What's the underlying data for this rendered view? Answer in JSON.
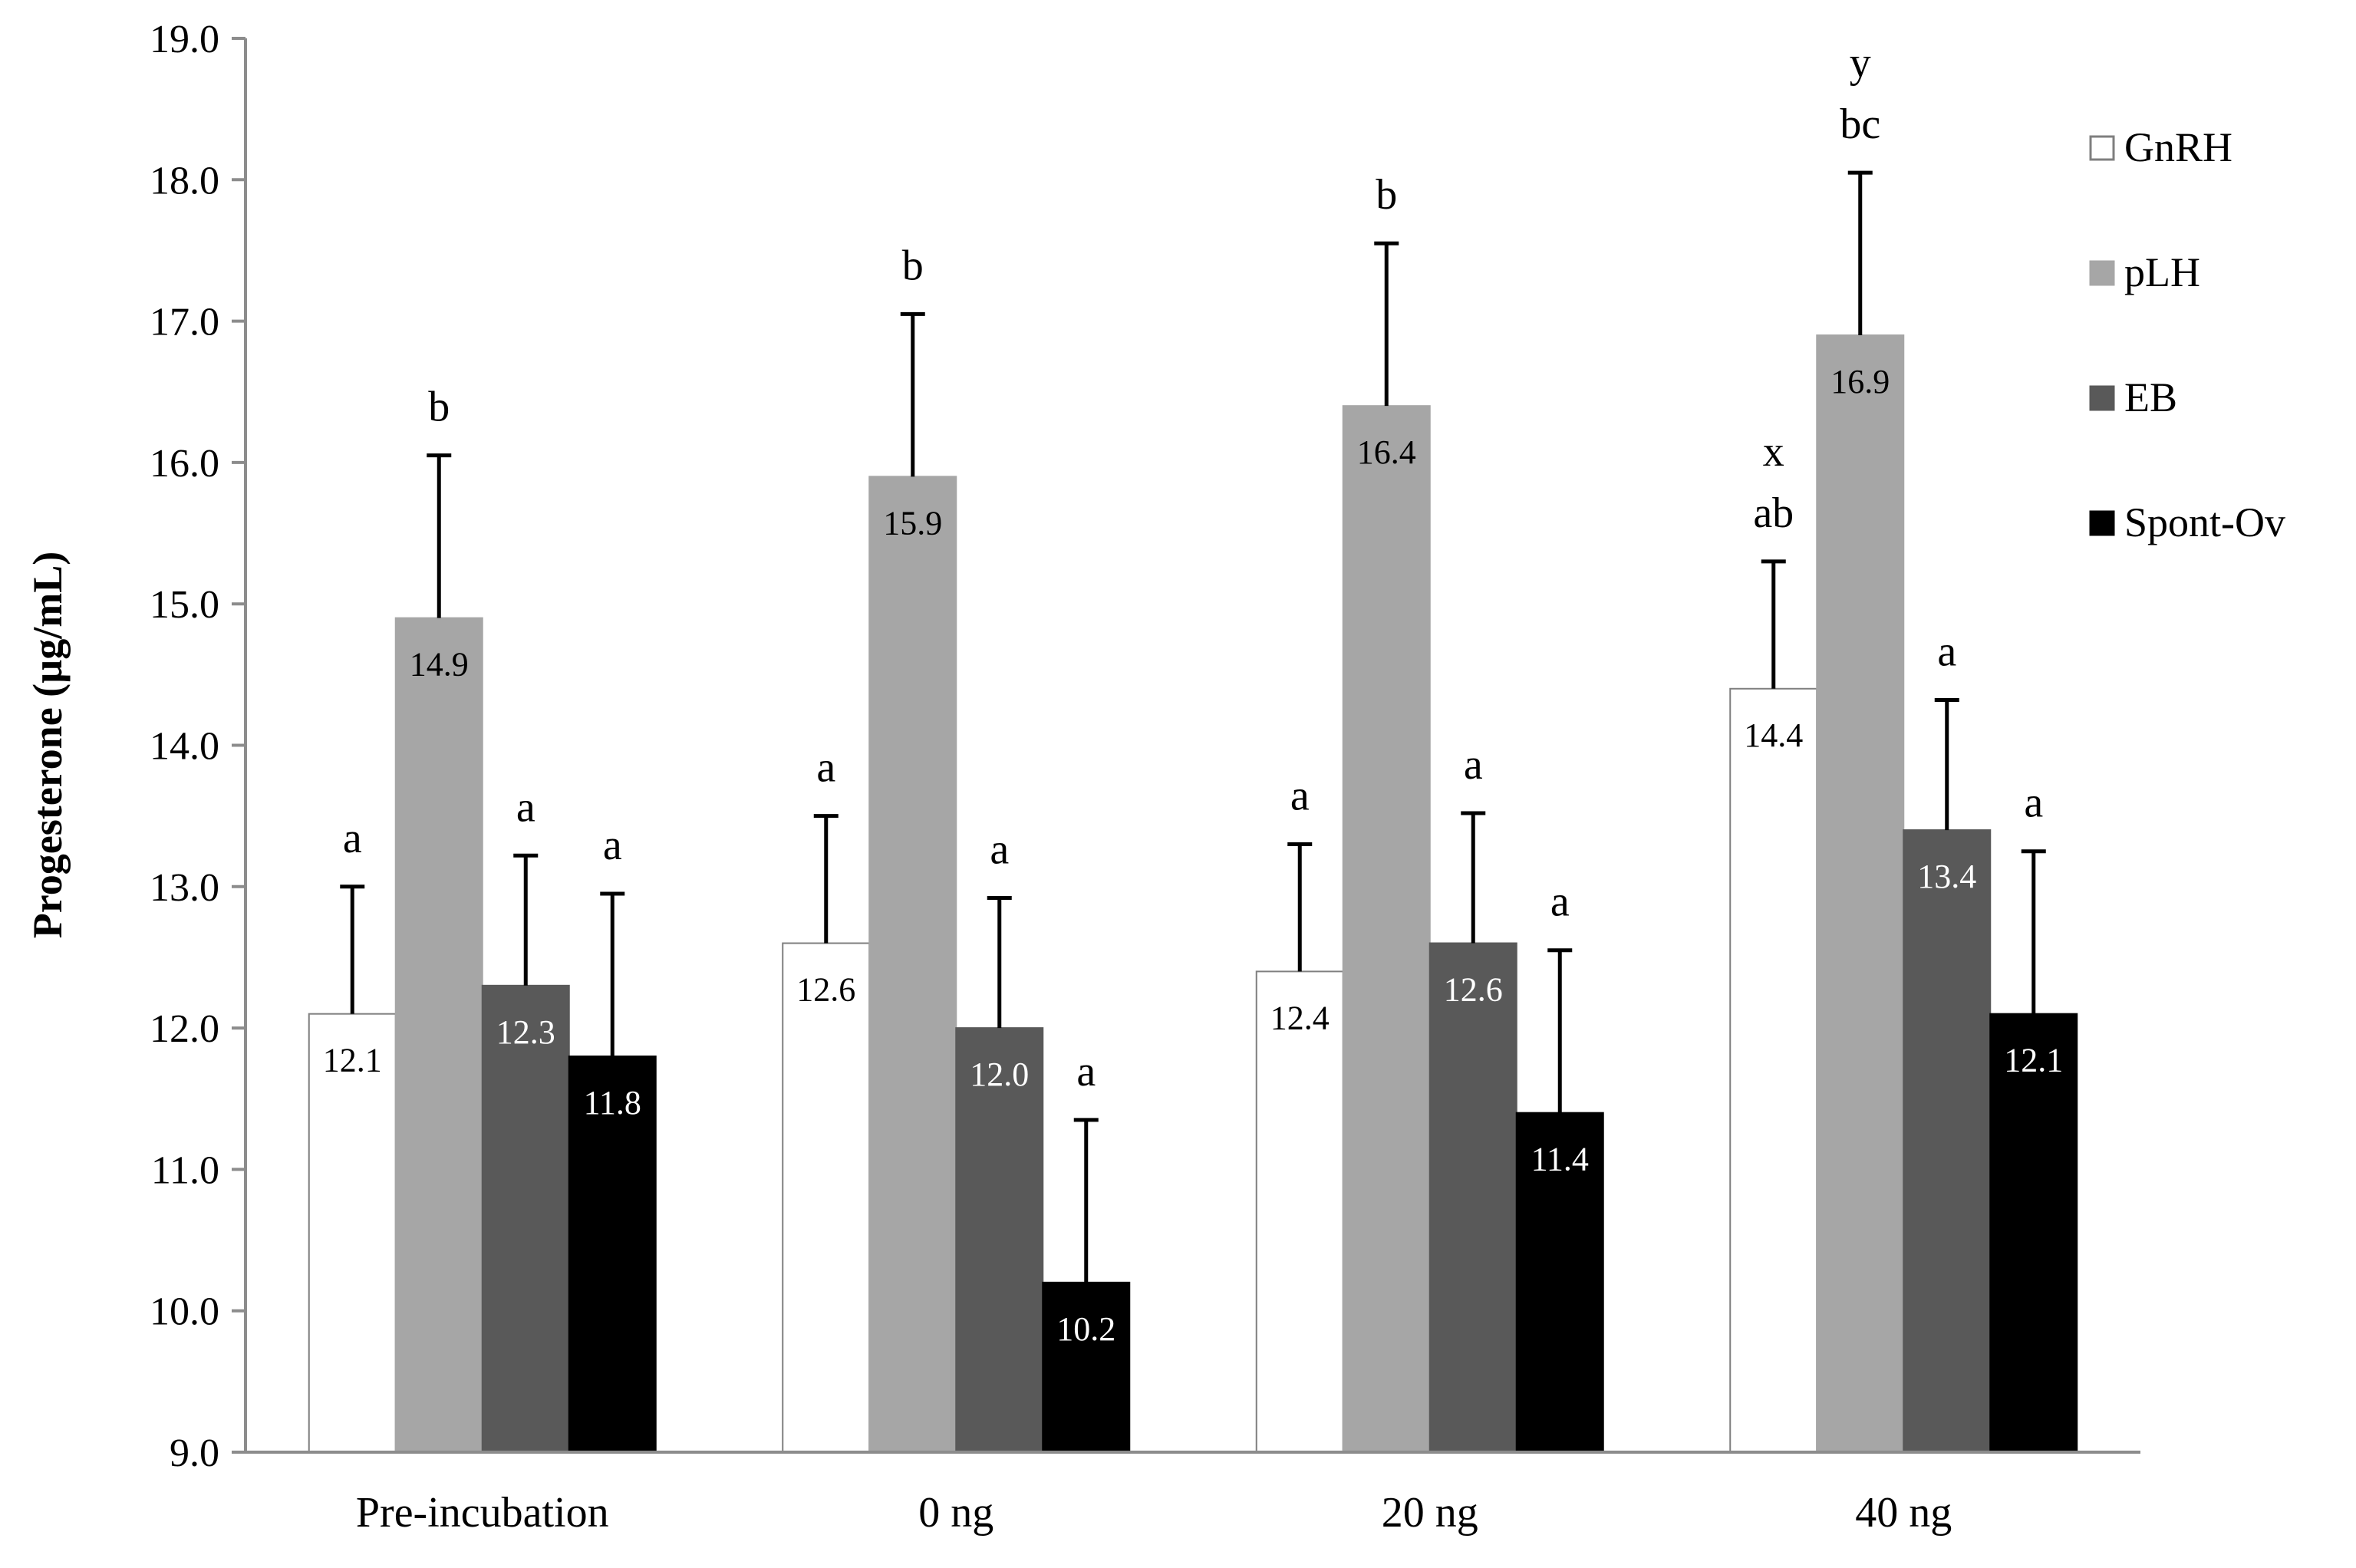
{
  "chart_data": {
    "type": "bar",
    "title": "",
    "xlabel": "",
    "ylabel": "Progesterone (µg/mL)",
    "ylim": [
      9.0,
      19.0
    ],
    "ytick_step": 1.0,
    "yticks": [
      "9.0",
      "10.0",
      "11.0",
      "12.0",
      "13.0",
      "14.0",
      "15.0",
      "16.0",
      "17.0",
      "18.0",
      "19.0"
    ],
    "categories": [
      "Pre-incubation",
      "0 ng",
      "20 ng",
      "40 ng"
    ],
    "legend_position": "right",
    "series": [
      {
        "name": "GnRH",
        "color": "#ffffff",
        "label_color": "#000000",
        "values": [
          12.1,
          12.6,
          12.4,
          14.4
        ],
        "value_labels": [
          "12.1",
          "12.6",
          "12.4",
          "14.4"
        ],
        "error": [
          0.9,
          0.9,
          0.9,
          0.9
        ],
        "letters": [
          "a",
          "a",
          "a",
          "ab"
        ],
        "extra_letters": [
          "",
          "",
          "",
          "x"
        ]
      },
      {
        "name": "pLH",
        "color": "#a6a6a6",
        "label_color": "#000000",
        "values": [
          14.9,
          15.9,
          16.4,
          16.9
        ],
        "value_labels": [
          "14.9",
          "15.9",
          "16.4",
          "16.9"
        ],
        "error": [
          1.15,
          1.15,
          1.15,
          1.15
        ],
        "letters": [
          "b",
          "b",
          "b",
          "bc"
        ],
        "extra_letters": [
          "",
          "",
          "",
          "y"
        ]
      },
      {
        "name": "EB",
        "color": "#595959",
        "label_color": "#ffffff",
        "values": [
          12.3,
          12.0,
          12.6,
          13.4
        ],
        "value_labels": [
          "12.3",
          "12.0",
          "12.6",
          "13.4"
        ],
        "error": [
          0.92,
          0.92,
          0.92,
          0.92
        ],
        "letters": [
          "a",
          "a",
          "a",
          "a"
        ],
        "extra_letters": [
          "",
          "",
          "",
          ""
        ]
      },
      {
        "name": "Spont-Ov",
        "color": "#000000",
        "label_color": "#ffffff",
        "values": [
          11.8,
          10.2,
          11.4,
          12.1
        ],
        "value_labels": [
          "11.8",
          "10.2",
          "11.4",
          "12.1"
        ],
        "error": [
          1.15,
          1.15,
          1.15,
          1.15
        ],
        "letters": [
          "a",
          "a",
          "a",
          "a"
        ],
        "extra_letters": [
          "",
          "",
          "",
          ""
        ]
      }
    ]
  }
}
